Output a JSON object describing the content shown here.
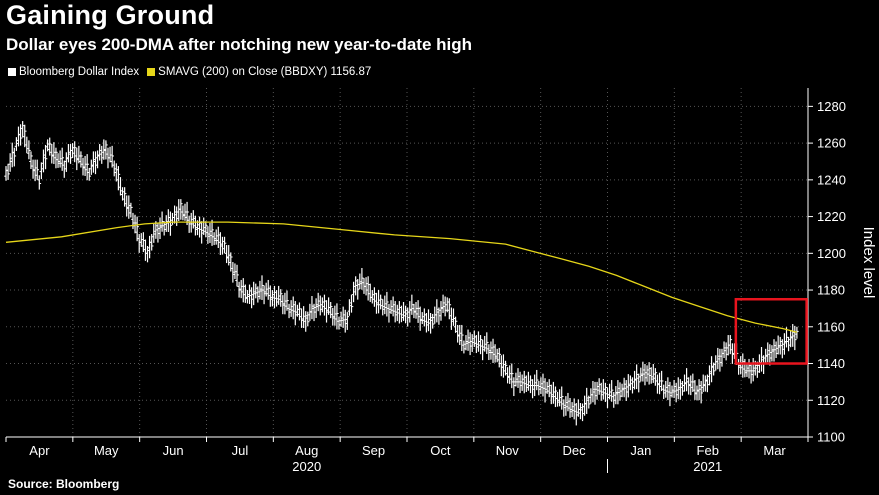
{
  "header": {
    "title": "Gaining Ground",
    "subtitle": "Dollar eyes 200-DMA after notching new year-to-date high"
  },
  "legend": {
    "series1": "Bloomberg Dollar Index",
    "series2": "SMAVG (200)  on Close (BBDXY) 1156.87"
  },
  "footer": {
    "source": "Source: Bloomberg"
  },
  "colors": {
    "background": "#000000",
    "price": "#ffffff",
    "sma": "#e6d619",
    "highlight": "#e8141e",
    "grid": "#555555"
  },
  "chart_data": {
    "type": "line",
    "ylabel": "Index level",
    "ylim": [
      1100,
      1290
    ],
    "yticks": [
      1100,
      1120,
      1140,
      1160,
      1180,
      1200,
      1220,
      1240,
      1260,
      1280
    ],
    "x_months": [
      "Apr",
      "May",
      "Jun",
      "Jul",
      "Aug",
      "Sep",
      "Oct",
      "Nov",
      "Dec",
      "Jan",
      "Feb",
      "Mar"
    ],
    "x_years": [
      "2020",
      "2021"
    ],
    "series": [
      {
        "name": "Bloomberg Dollar Index",
        "style": "ohlc-bars",
        "points": [
          [
            0,
            1242
          ],
          [
            0.3,
            1255
          ],
          [
            0.6,
            1268
          ],
          [
            0.9,
            1250
          ],
          [
            1.2,
            1240
          ],
          [
            1.5,
            1258
          ],
          [
            1.8,
            1252
          ],
          [
            2.1,
            1248
          ],
          [
            2.4,
            1256
          ],
          [
            2.7,
            1250
          ],
          [
            3.0,
            1244
          ],
          [
            3.3,
            1252
          ],
          [
            3.6,
            1256
          ],
          [
            3.9,
            1248
          ],
          [
            4.2,
            1232
          ],
          [
            4.5,
            1222
          ],
          [
            4.8,
            1208
          ],
          [
            5.1,
            1200
          ],
          [
            5.4,
            1212
          ],
          [
            5.7,
            1215
          ],
          [
            6.0,
            1218
          ],
          [
            6.3,
            1224
          ],
          [
            6.6,
            1218
          ],
          [
            6.9,
            1214
          ],
          [
            7.2,
            1212
          ],
          [
            7.5,
            1209
          ],
          [
            7.8,
            1205
          ],
          [
            8.1,
            1195
          ],
          [
            8.4,
            1182
          ],
          [
            8.7,
            1176
          ],
          [
            9.0,
            1178
          ],
          [
            9.3,
            1180
          ],
          [
            9.6,
            1176
          ],
          [
            9.9,
            1175
          ],
          [
            10.2,
            1170
          ],
          [
            10.5,
            1168
          ],
          [
            10.8,
            1163
          ],
          [
            11.1,
            1170
          ],
          [
            11.4,
            1172
          ],
          [
            11.7,
            1168
          ],
          [
            12.0,
            1163
          ],
          [
            12.3,
            1164
          ],
          [
            12.6,
            1182
          ],
          [
            12.9,
            1184
          ],
          [
            13.2,
            1176
          ],
          [
            13.5,
            1172
          ],
          [
            13.8,
            1170
          ],
          [
            14.1,
            1168
          ],
          [
            14.4,
            1166
          ],
          [
            14.7,
            1170
          ],
          [
            15.0,
            1164
          ],
          [
            15.3,
            1162
          ],
          [
            15.6,
            1168
          ],
          [
            15.9,
            1172
          ],
          [
            16.2,
            1160
          ],
          [
            16.5,
            1150
          ],
          [
            16.8,
            1152
          ],
          [
            17.1,
            1150
          ],
          [
            17.4,
            1148
          ],
          [
            17.7,
            1144
          ],
          [
            18.0,
            1136
          ],
          [
            18.3,
            1130
          ],
          [
            18.6,
            1130
          ],
          [
            18.9,
            1128
          ],
          [
            19.2,
            1128
          ],
          [
            19.5,
            1126
          ],
          [
            19.8,
            1122
          ],
          [
            20.1,
            1118
          ],
          [
            20.4,
            1115
          ],
          [
            20.7,
            1113
          ],
          [
            21.0,
            1120
          ],
          [
            21.3,
            1126
          ],
          [
            21.6,
            1124
          ],
          [
            21.9,
            1122
          ],
          [
            22.2,
            1125
          ],
          [
            22.5,
            1128
          ],
          [
            22.8,
            1132
          ],
          [
            23.1,
            1135
          ],
          [
            23.4,
            1132
          ],
          [
            23.7,
            1126
          ],
          [
            24.0,
            1124
          ],
          [
            24.3,
            1126
          ],
          [
            24.6,
            1130
          ],
          [
            24.9,
            1124
          ],
          [
            25.2,
            1128
          ],
          [
            25.5,
            1138
          ],
          [
            25.8,
            1144
          ],
          [
            26.1,
            1150
          ],
          [
            26.4,
            1140
          ],
          [
            26.7,
            1136
          ],
          [
            27.0,
            1136
          ],
          [
            27.3,
            1142
          ],
          [
            27.6,
            1146
          ],
          [
            27.9,
            1149
          ],
          [
            28.2,
            1152
          ],
          [
            28.5,
            1156
          ]
        ]
      },
      {
        "name": "SMAVG (200)",
        "style": "line",
        "points": [
          [
            0,
            1206
          ],
          [
            2,
            1209
          ],
          [
            4,
            1214
          ],
          [
            5,
            1216
          ],
          [
            6,
            1217
          ],
          [
            8,
            1217
          ],
          [
            10,
            1216
          ],
          [
            12,
            1213
          ],
          [
            14,
            1210
          ],
          [
            16,
            1208
          ],
          [
            18,
            1205
          ],
          [
            19,
            1201
          ],
          [
            20,
            1197
          ],
          [
            21,
            1193
          ],
          [
            22,
            1188
          ],
          [
            23,
            1182
          ],
          [
            24,
            1176
          ],
          [
            25,
            1171
          ],
          [
            26,
            1166
          ],
          [
            27,
            1162
          ],
          [
            28,
            1159
          ],
          [
            28.5,
            1157
          ]
        ]
      }
    ]
  }
}
